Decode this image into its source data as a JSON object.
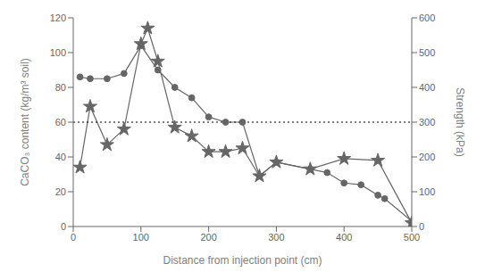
{
  "chart_data": {
    "type": "line",
    "xlabel": "Distance from injection point (cm)",
    "ylabel": "CaCO₃ content (kg/m³ soil)",
    "y2label": "Strength (kPa)",
    "xlim": [
      0,
      500
    ],
    "xticks": [
      0,
      100,
      200,
      300,
      400,
      500
    ],
    "ylim": [
      0,
      120
    ],
    "yticks": [
      0,
      20,
      40,
      60,
      80,
      100,
      120
    ],
    "y2lim": [
      0,
      600
    ],
    "y2ticks": [
      0,
      100,
      200,
      300,
      400,
      500,
      600
    ],
    "grid": false,
    "series": [
      {
        "x": [
          10,
          25,
          50,
          75,
          100,
          110,
          125,
          150,
          175,
          200,
          225,
          250,
          275,
          300,
          350,
          400,
          450,
          500
        ],
        "values": [
          34,
          69,
          47,
          56,
          105,
          114,
          95,
          57,
          52,
          43,
          43,
          45,
          29,
          37,
          33,
          39,
          38,
          2
        ],
        "color": "#666666",
        "marker": "star",
        "line_style": "solid"
      },
      {
        "x": [
          10,
          25,
          50,
          75,
          100,
          125,
          150,
          175,
          200,
          225,
          250,
          275,
          300,
          350,
          375,
          400,
          425,
          450,
          460,
          500
        ],
        "values": [
          430,
          425,
          425,
          440,
          520,
          450,
          400,
          370,
          315,
          300,
          300,
          145,
          185,
          165,
          155,
          125,
          120,
          90,
          80,
          15
        ],
        "color": "#666666",
        "marker": "circle",
        "line_style": "solid",
        "axis": "y2"
      },
      {
        "x": [
          0,
          500
        ],
        "values": [
          60,
          60
        ],
        "color": "black",
        "line_style": "dotted"
      }
    ]
  }
}
